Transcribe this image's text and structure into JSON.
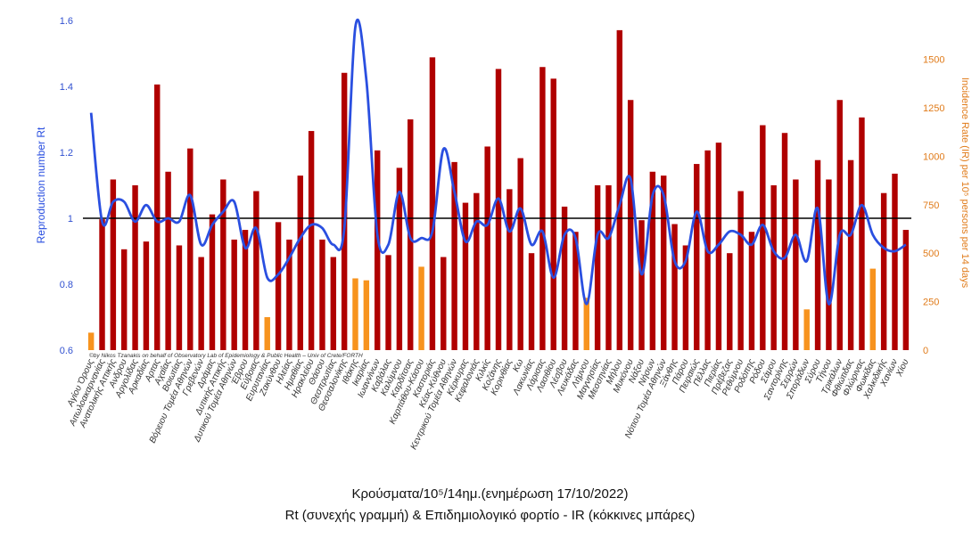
{
  "chart_data": {
    "type": "bar",
    "title_line1": "Κρούσματα/10⁵/14ημ.(ενημέρωση 17/10/2022)",
    "title_line2": "Rt (συνεχής γραμμή) & Επιδημιολογικό φορτίο - IR (κόκκινες μπάρες)",
    "ylabel_left": "Reproduction number Rt",
    "ylabel_right": "Incidence Rate (IR) per 10⁵ persons per 14 days",
    "credit": "©by Nikos Tzanakis on behalf of Observatory Lab of Epidemiology & Public Health – Univ of Crete/FORTH",
    "ylim_left": [
      0.6,
      1.6
    ],
    "yticks_left": [
      "0.6",
      "0.8",
      "1",
      "1.2",
      "1.4",
      "1.6"
    ],
    "ylim_right": [
      0,
      1700
    ],
    "yticks_right": [
      "0",
      "250",
      "500",
      "750",
      "1000",
      "1250",
      "1500"
    ],
    "reference_line": 1,
    "colors": {
      "bar_red": "#b00000",
      "bar_orange": "#f7931e",
      "rt_line": "#2a4fe0",
      "ref_line": "#000000"
    },
    "categories": [
      "Αγίου Όρους",
      "Αιτωλοακαρνανίας",
      "Ανατολικής Αττικής",
      "Ανδρου",
      "Αργολίδας",
      "Αρκαδίας",
      "Αρτας",
      "Αχαΐας",
      "Βοιωτίας",
      "Βόρειου Τομέα Αθηνών",
      "Γρεβενών",
      "Δράμας",
      "Δυτικής Αττικής",
      "Δυτικού Τομέα Αθηνών",
      "Έβρου",
      "Εύβοιας",
      "Ευρυτανίας",
      "Ζακύνθου",
      "Ηλείας",
      "Ημαθίας",
      "Ηρακλείου",
      "Θάσου",
      "Θεσπρωτίας",
      "Θεσσαλονίκης",
      "Ιθάκης",
      "Ικαρίας",
      "Ιωαννίνων",
      "Καβάλας",
      "Καλύμνου",
      "Καρδίτσας",
      "Καρπάθου-Κάσου",
      "Καστοριάς",
      "Κέας-Κύθνου",
      "Κεντρικού Τομέα Αθηνών",
      "Κέρκυρας",
      "Κεφαλονιάς",
      "Κιλκίς",
      "Κοζάνης",
      "Κορινθίας",
      "Κω",
      "Λακωνίας",
      "Λάρισας",
      "Λασιθίου",
      "Λέσβου",
      "Λευκάδας",
      "Λήμνου",
      "Μαγνησίας",
      "Μεσσηνίας",
      "Μήλου",
      "Μυκόνου",
      "Νάξου",
      "Νήσων",
      "Νότιου Τομέα Αθηνών",
      "Ξάνθης",
      "Πάρου",
      "Πειραιώς",
      "Πέλλας",
      "Πιερίας",
      "Πρέβεζας",
      "Ρεθύμνου",
      "Ροδόπης",
      "Ρόδου",
      "Σάμου",
      "Σαντορίνης",
      "Σερρών",
      "Σποράδων",
      "Σύρου",
      "Τήνου",
      "Τρικάλων",
      "Φθιώτιδας",
      "Φλώρινας",
      "Φωκίδας",
      "Χαλκιδικής",
      "Χανίων",
      "Χίου"
    ],
    "ir_values": [
      90,
      675,
      880,
      520,
      850,
      560,
      1370,
      920,
      540,
      1040,
      480,
      700,
      880,
      570,
      620,
      820,
      170,
      660,
      570,
      900,
      1130,
      570,
      480,
      1430,
      370,
      360,
      1030,
      490,
      940,
      1190,
      430,
      1510,
      480,
      970,
      760,
      810,
      1050,
      1450,
      830,
      990,
      500,
      1460,
      1400,
      740,
      610,
      270,
      850,
      850,
      1650,
      1290,
      670,
      920,
      900,
      650,
      540,
      960,
      1030,
      1070,
      500,
      820,
      610,
      1160,
      850,
      1120,
      880,
      210,
      980,
      880,
      1290,
      980,
      1200,
      420,
      810,
      910,
      620
    ],
    "ir_highlight": [
      0,
      16,
      24,
      25,
      30,
      45,
      65,
      71
    ],
    "rt_values": [
      1.32,
      0.99,
      1.05,
      1.05,
      0.99,
      1.04,
      0.99,
      1.0,
      0.99,
      1.07,
      0.92,
      0.98,
      1.02,
      1.05,
      0.91,
      0.97,
      0.82,
      0.83,
      0.88,
      0.94,
      0.98,
      0.97,
      0.92,
      0.97,
      1.58,
      1.42,
      0.95,
      0.92,
      1.08,
      0.94,
      0.94,
      0.96,
      1.21,
      1.08,
      0.93,
      0.99,
      0.98,
      1.06,
      0.96,
      1.03,
      0.92,
      0.96,
      0.82,
      0.95,
      0.94,
      0.74,
      0.95,
      0.94,
      1.04,
      1.12,
      0.83,
      1.07,
      1.07,
      0.87,
      0.87,
      1.02,
      0.9,
      0.92,
      0.96,
      0.95,
      0.92,
      0.98,
      0.9,
      0.88,
      0.95,
      0.87,
      1.03,
      0.74,
      0.95,
      0.95,
      1.04,
      0.95,
      0.91,
      0.9,
      0.92
    ]
  }
}
